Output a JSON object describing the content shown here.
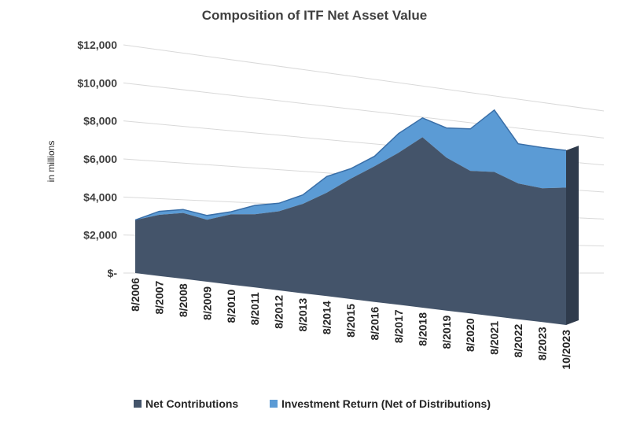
{
  "chart_data": {
    "type": "area",
    "title": "Composition of ITF Net Asset Value",
    "ylabel": "in millions",
    "xlabel": "",
    "ylim": [
      0,
      12000
    ],
    "y_ticks": [
      "$-",
      "$2,000",
      "$4,000",
      "$6,000",
      "$8,000",
      "$10,000",
      "$12,000"
    ],
    "y_tick_values": [
      0,
      2000,
      4000,
      6000,
      8000,
      10000,
      12000
    ],
    "x_labels": [
      "8/2006",
      "8/2007",
      "8/2008",
      "8/2009",
      "8/2010",
      "8/2011",
      "8/2012",
      "8/2013",
      "8/2014",
      "8/2015",
      "8/2016",
      "8/2017",
      "8/2018",
      "8/2019",
      "8/2020",
      "8/2021",
      "8/2022",
      "8/2023",
      "10/2023"
    ],
    "stacked": true,
    "grid": true,
    "legend_position": "bottom",
    "series": [
      {
        "name": "Net Contributions",
        "color": "#44546A",
        "values": [
          3100,
          3550,
          3800,
          3550,
          4000,
          4150,
          4450,
          5000,
          5750,
          6650,
          7450,
          8300,
          9250,
          8250,
          7650,
          7700,
          7200,
          7050,
          7200
        ]
      },
      {
        "name": "Investment Return (Net of Distributions)",
        "color": "#5B9BD5",
        "values": [
          0,
          200,
          200,
          250,
          150,
          500,
          450,
          500,
          900,
          550,
          550,
          1050,
          1050,
          1600,
          2250,
          3300,
          2100,
          2150,
          1950
        ]
      }
    ]
  }
}
